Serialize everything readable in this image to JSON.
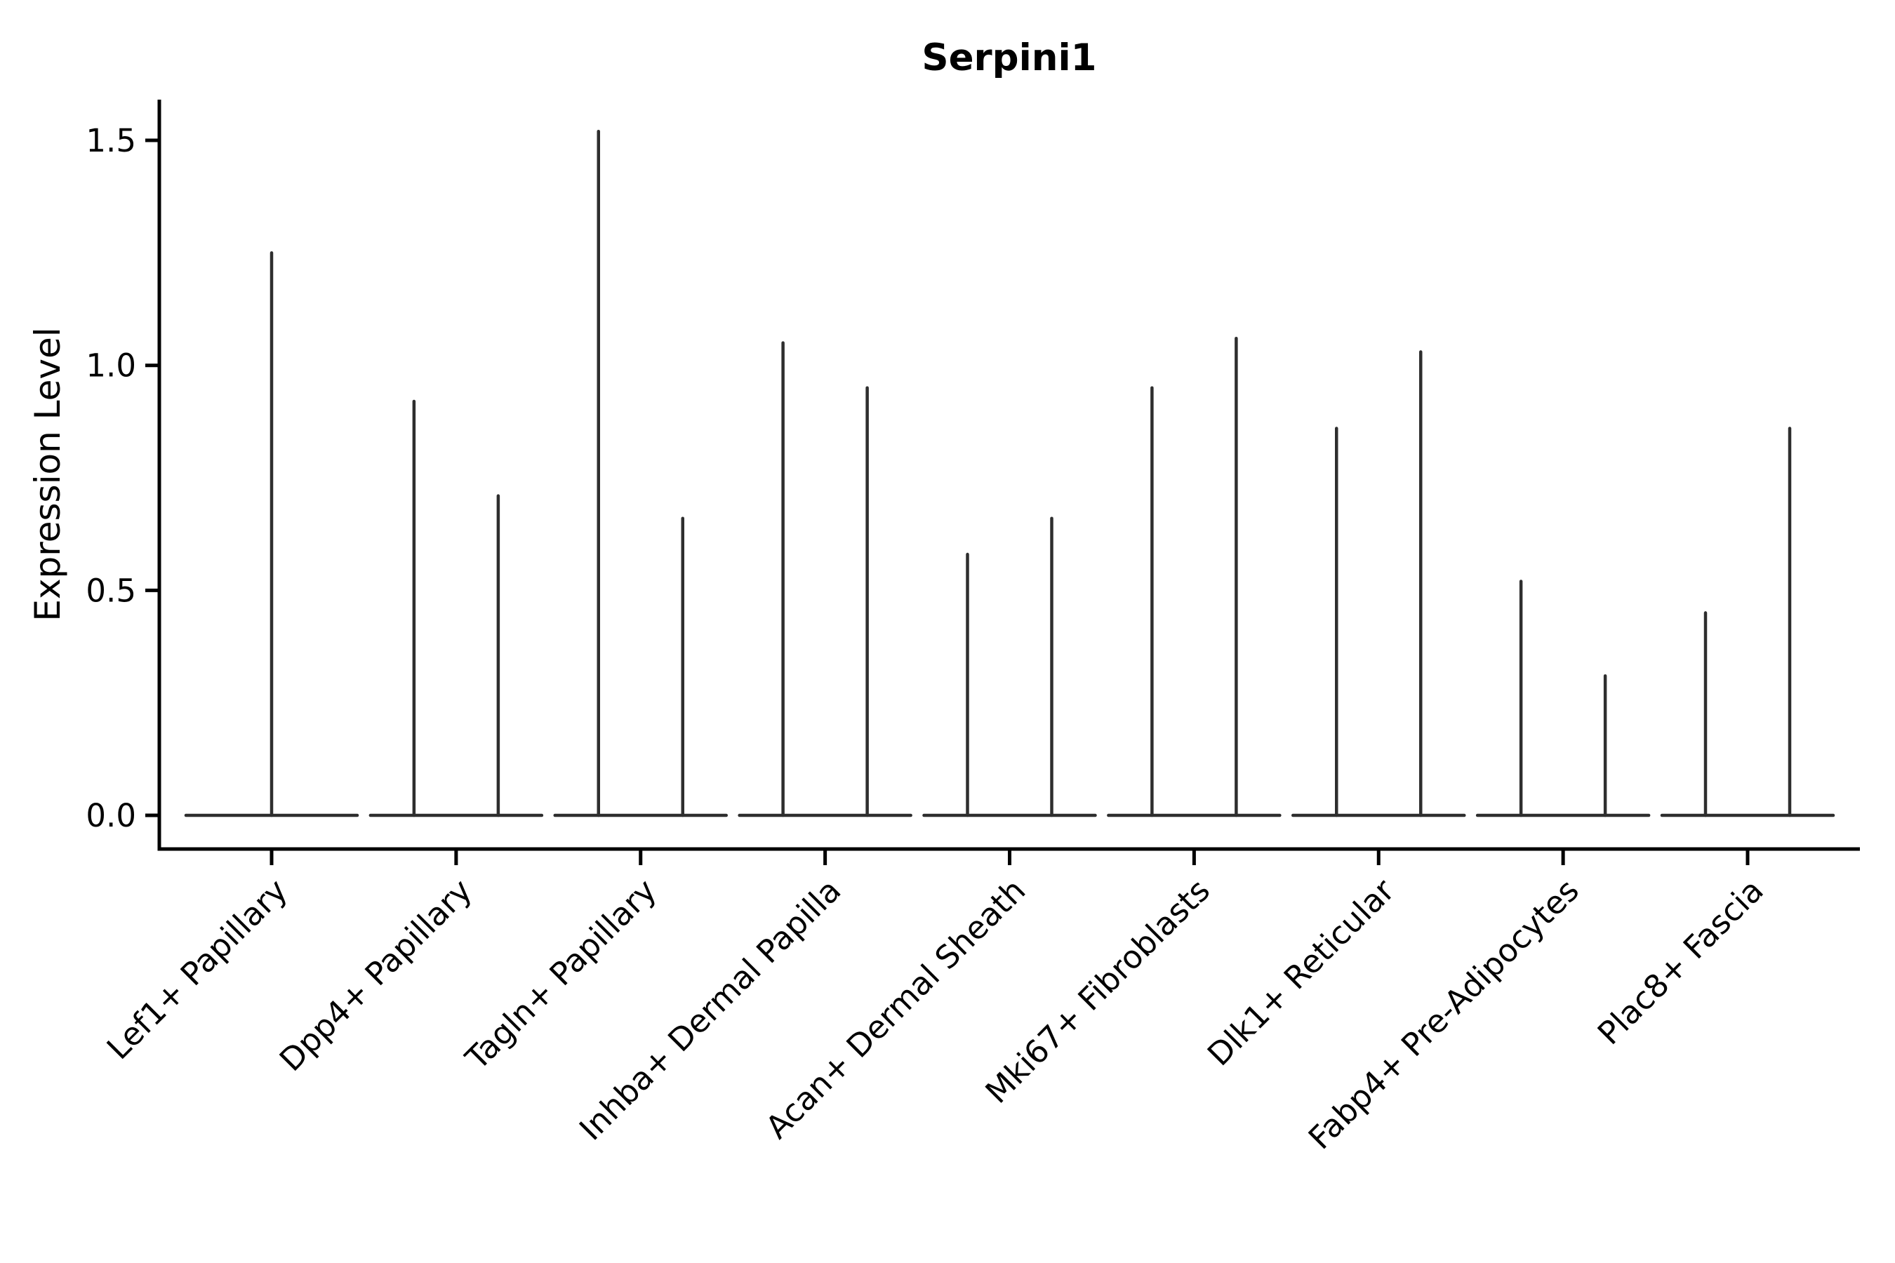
{
  "title": "Serpini1",
  "colors": {
    "violin": "#2e2e2e",
    "axis": "#000000",
    "text": "#000000",
    "background": "#ffffff"
  },
  "chart_data": {
    "type": "violin",
    "title": "Serpini1",
    "xlabel": "",
    "ylabel": "Expression Level",
    "ylim": [
      -0.07,
      1.59
    ],
    "yticks": [
      0.0,
      0.5,
      1.0,
      1.5
    ],
    "ytick_labels": [
      "0.0",
      "0.5",
      "1.0",
      "1.5"
    ],
    "grid": false,
    "legend": null,
    "x_tick_rotation_degrees": 45,
    "categories": [
      "Lef1+ Papillary",
      "Dpp4+ Papillary",
      "Tagln+ Papillary",
      "Inhba+ Dermal Papilla",
      "Acan+ Dermal Sheath",
      "Mki67+ Fibroblasts",
      "Dlk1+ Reticular",
      "Fabp4+ Pre-Adipocytes",
      "Plac8+ Fascia"
    ],
    "series": [
      {
        "category": "Lef1+ Papillary",
        "violin_max_values": [
          1.25
        ]
      },
      {
        "category": "Dpp4+ Papillary",
        "violin_max_values": [
          0.92,
          0.71
        ]
      },
      {
        "category": "Tagln+ Papillary",
        "violin_max_values": [
          1.52,
          0.66
        ]
      },
      {
        "category": "Inhba+ Dermal Papilla",
        "violin_max_values": [
          1.05,
          0.95
        ]
      },
      {
        "category": "Acan+ Dermal Sheath",
        "violin_max_values": [
          0.58,
          0.66
        ]
      },
      {
        "category": "Mki67+ Fibroblasts",
        "violin_max_values": [
          0.95,
          1.06
        ]
      },
      {
        "category": "Dlk1+ Reticular",
        "violin_max_values": [
          0.86,
          1.03
        ]
      },
      {
        "category": "Fabp4+ Pre-Adipocytes",
        "violin_max_values": [
          0.52,
          0.31
        ]
      },
      {
        "category": "Plac8+ Fascia",
        "violin_max_values": [
          0.45,
          0.86
        ]
      }
    ],
    "violins_at_baseline": "all violins are needle-thin with flat bodies at expression level 0"
  }
}
